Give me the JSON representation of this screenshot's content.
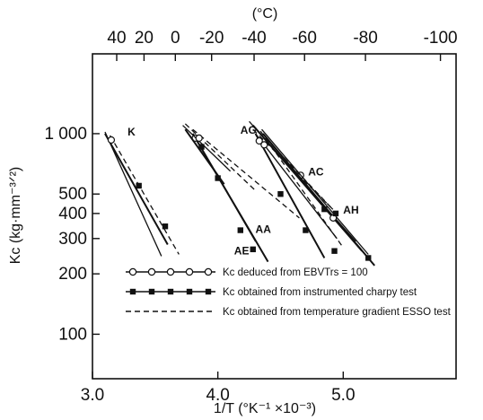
{
  "chart_data": {
    "type": "line",
    "xlabel": "1/T (°K⁻¹ ×10⁻³)",
    "ylabel": "Kc (kg·mm⁻³ᐟ²)",
    "top_axis_label": "(°C)",
    "xlim": [
      3.0,
      5.9
    ],
    "ylim": [
      60,
      2500
    ],
    "y_scale": "log",
    "x_ticks": [
      {
        "value": 3.0,
        "label": "3.0"
      },
      {
        "value": 4.0,
        "label": "4.0"
      },
      {
        "value": 5.0,
        "label": "5.0"
      }
    ],
    "y_ticks": [
      {
        "value": 1000,
        "label": "1 000"
      },
      {
        "value": 500,
        "label": "500"
      },
      {
        "value": 400,
        "label": "400"
      },
      {
        "value": 300,
        "label": "300"
      },
      {
        "value": 200,
        "label": "200"
      },
      {
        "value": 100,
        "label": "100"
      }
    ],
    "top_ticks": [
      {
        "value": 40,
        "label": "40"
      },
      {
        "value": 20,
        "label": "20"
      },
      {
        "value": 0,
        "label": "0"
      },
      {
        "value": -20,
        "label": "-20"
      },
      {
        "value": -40,
        "label": "-40"
      },
      {
        "value": -60,
        "label": "-60"
      },
      {
        "value": -80,
        "label": "-80"
      },
      {
        "value": -100,
        "label": "-100"
      }
    ],
    "grid": false,
    "legend_position": "bottom-center",
    "legend": [
      {
        "style": "solid-open",
        "label": "Kc deduced from EBVTrs = 100"
      },
      {
        "style": "solid-filled",
        "label": "Kc obtained from instrumented charpy test"
      },
      {
        "style": "dashed",
        "label": "Kc obtained from temperature gradient ESSO test"
      }
    ],
    "series": [
      {
        "label": "K",
        "color": "#111111",
        "deduced": [
          [
            3.1,
            1020
          ],
          [
            3.55,
            245
          ]
        ],
        "charpy": [
          [
            3.1,
            1000
          ],
          [
            3.6,
            280
          ]
        ],
        "esso": [
          [
            3.14,
            980
          ],
          [
            3.69,
            250
          ]
        ],
        "open_points": [
          [
            3.15,
            930
          ]
        ],
        "filled_points": [
          [
            3.37,
            550
          ],
          [
            3.58,
            345
          ]
        ]
      },
      {
        "label": "AA",
        "color": "#111111",
        "deduced": [
          [
            3.8,
            1000
          ],
          [
            4.3,
            290
          ]
        ],
        "charpy": [
          [
            3.8,
            1000
          ],
          [
            4.4,
            230
          ]
        ],
        "esso": [
          [
            3.8,
            1050
          ],
          [
            4.65,
            380
          ]
        ],
        "open_points": [
          [
            3.82,
            950
          ]
        ],
        "filled_points": [
          [
            4.0,
            600
          ],
          [
            4.28,
            265
          ]
        ]
      },
      {
        "label": "AE",
        "color": "#111111",
        "deduced": [
          [
            3.72,
            1100
          ],
          [
            4.1,
            650
          ]
        ],
        "charpy": [
          [
            3.74,
            1050
          ],
          [
            4.05,
            560
          ]
        ],
        "esso": [
          [
            3.74,
            1120
          ],
          [
            4.3,
            520
          ]
        ],
        "open_points": [
          [
            3.85,
            950
          ]
        ],
        "filled_points": [
          [
            4.18,
            330
          ],
          [
            3.87,
            860
          ]
        ]
      },
      {
        "label": "AG",
        "color": "#111111",
        "deduced": [
          [
            4.3,
            1000
          ],
          [
            4.95,
            300
          ]
        ],
        "charpy": [
          [
            4.3,
            1000
          ],
          [
            4.85,
            240
          ]
        ],
        "esso": [
          [
            4.34,
            1030
          ],
          [
            5.0,
            270
          ]
        ],
        "open_points": [
          [
            4.33,
            920
          ],
          [
            4.37,
            880
          ]
        ],
        "filled_points": [
          [
            4.5,
            500
          ],
          [
            4.7,
            330
          ],
          [
            4.93,
            260
          ]
        ]
      },
      {
        "label": "AC",
        "color": "#111111",
        "deduced": [
          [
            4.25,
            1150
          ],
          [
            5.1,
            290
          ]
        ],
        "charpy": [
          [
            4.28,
            1100
          ],
          [
            5.15,
            260
          ]
        ],
        "esso": [
          [
            4.28,
            1050
          ],
          [
            4.95,
            400
          ]
        ],
        "open_points": [
          [
            4.66,
            620
          ]
        ],
        "filled_points": [
          [
            4.85,
            420
          ]
        ]
      },
      {
        "label": "AH",
        "color": "#111111",
        "deduced": [
          [
            4.35,
            1050
          ],
          [
            5.2,
            250
          ]
        ],
        "charpy": [
          [
            4.36,
            1000
          ],
          [
            5.25,
            220
          ]
        ],
        "esso": [
          [
            4.38,
            950
          ],
          [
            4.9,
            430
          ]
        ],
        "open_points": [
          [
            4.92,
            380
          ]
        ],
        "filled_points": [
          [
            4.94,
            400
          ],
          [
            5.2,
            240
          ]
        ]
      }
    ]
  },
  "annotations": [
    {
      "text": "K",
      "x": 3.28,
      "y": 980
    },
    {
      "text": "AG",
      "x": 4.18,
      "y": 1000
    },
    {
      "text": "AC",
      "x": 4.72,
      "y": 620
    },
    {
      "text": "AH",
      "x": 5.0,
      "y": 400
    },
    {
      "text": "AA",
      "x": 4.3,
      "y": 320
    },
    {
      "text": "AE",
      "x": 4.13,
      "y": 250
    }
  ]
}
